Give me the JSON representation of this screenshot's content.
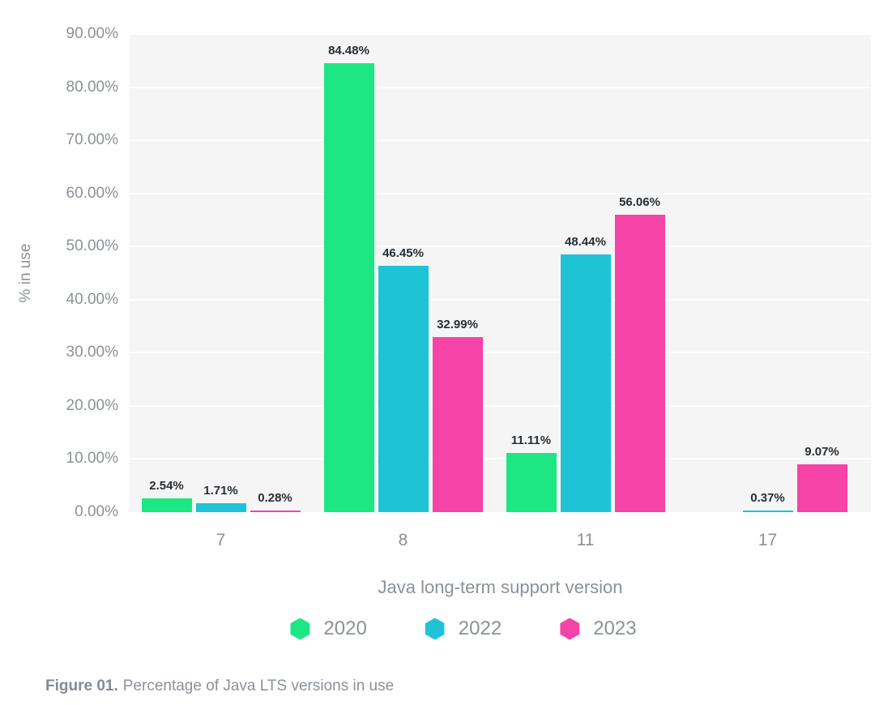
{
  "chart_data": {
    "type": "bar",
    "title": "",
    "categories": [
      "7",
      "8",
      "11",
      "17"
    ],
    "series": [
      {
        "name": "2020",
        "color": "#1ce783",
        "values": [
          2.54,
          84.48,
          11.11,
          null
        ]
      },
      {
        "name": "2022",
        "color": "#1ec3d6",
        "values": [
          1.71,
          46.45,
          48.44,
          0.37
        ]
      },
      {
        "name": "2023",
        "color": "#f543a7",
        "values": [
          0.28,
          32.99,
          56.06,
          9.07
        ]
      }
    ],
    "xlabel": "Java long-term support version",
    "ylabel": "% in use",
    "ylim": [
      0,
      90
    ],
    "ytick_step": 10,
    "ytick_labels": [
      "0.00%",
      "10.00%",
      "20.00%",
      "30.00%",
      "40.00%",
      "50.00%",
      "60.00%",
      "70.00%",
      "80.00%",
      "90.00%"
    ],
    "value_label_format": "2dp_percent",
    "grid": true,
    "legend_position": "bottom"
  },
  "caption": {
    "prefix": "Figure 01.",
    "text": "Percentage of Java LTS versions in use"
  },
  "colors": {
    "plot_background": "#f5f5f6",
    "gridline": "#ffffff",
    "axis_text": "#8b9197",
    "value_label_text": "#272e33",
    "caption_text": "#8b9197"
  }
}
